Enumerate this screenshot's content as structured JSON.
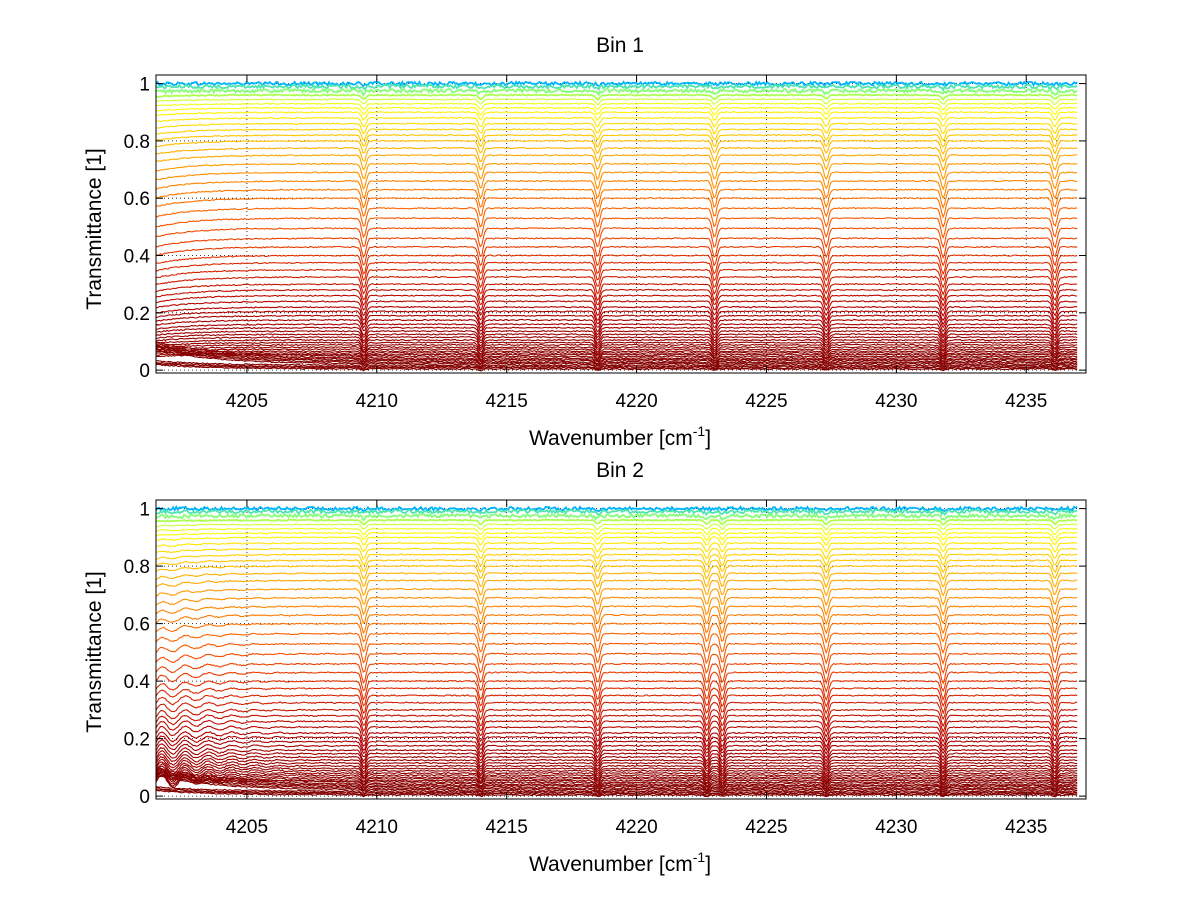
{
  "chart_data": [
    {
      "type": "line",
      "title": "Bin 1",
      "xlabel_main": "Wavenumber [cm",
      "xlabel_sup": "-1",
      "xlabel_close": "]",
      "ylabel": "Transmittance [1]",
      "xlim": [
        4201.5,
        4237.3
      ],
      "ylim": [
        -0.01,
        1.03
      ],
      "xticks": [
        4205,
        4210,
        4215,
        4220,
        4225,
        4230,
        4235
      ],
      "yticks": [
        0,
        0.2,
        0.4,
        0.6,
        0.8,
        1
      ],
      "xtick_labels": [
        "4205",
        "4210",
        "4215",
        "4220",
        "4225",
        "4230",
        "4235"
      ],
      "ytick_labels": [
        "0",
        "0.2",
        "0.4",
        "0.6",
        "0.8",
        "1"
      ],
      "grid": "dotted",
      "x_end": 4237.0,
      "absorption_lines": [
        4209.5,
        4214.0,
        4218.5,
        4223.0,
        4227.3,
        4231.8,
        4236.1
      ],
      "series_count": 60,
      "series_levels": [
        1.0,
        0.99,
        0.975,
        0.96,
        0.945,
        0.93,
        0.915,
        0.9,
        0.88,
        0.86,
        0.84,
        0.82,
        0.8,
        0.775,
        0.75,
        0.72,
        0.69,
        0.66,
        0.63,
        0.6,
        0.565,
        0.53,
        0.495,
        0.46,
        0.43,
        0.4,
        0.375,
        0.35,
        0.325,
        0.3,
        0.28,
        0.26,
        0.24,
        0.22,
        0.205,
        0.19,
        0.175,
        0.16,
        0.148,
        0.136,
        0.125,
        0.115,
        0.105,
        0.096,
        0.088,
        0.08,
        0.073,
        0.066,
        0.06,
        0.054,
        0.048,
        0.042,
        0.037,
        0.032,
        0.027,
        0.022,
        0.017,
        0.012,
        0.008,
        0.004
      ],
      "colormap": [
        "#00b4ff",
        "#7fff7f",
        "#ffff00",
        "#ffcc00",
        "#ff9900",
        "#ff6600",
        "#e63300",
        "#b30000",
        "#800000"
      ]
    },
    {
      "type": "line",
      "title": "Bin 2",
      "xlabel_main": "Wavenumber [cm",
      "xlabel_sup": "-1",
      "xlabel_close": "]",
      "ylabel": "Transmittance [1]",
      "xlim": [
        4201.5,
        4237.3
      ],
      "ylim": [
        -0.01,
        1.03
      ],
      "xticks": [
        4205,
        4210,
        4215,
        4220,
        4225,
        4230,
        4235
      ],
      "yticks": [
        0,
        0.2,
        0.4,
        0.6,
        0.8,
        1
      ],
      "xtick_labels": [
        "4205",
        "4210",
        "4215",
        "4220",
        "4225",
        "4230",
        "4235"
      ],
      "ytick_labels": [
        "0",
        "0.2",
        "0.4",
        "0.6",
        "0.8",
        "1"
      ],
      "grid": "dotted",
      "x_end": 4237.0,
      "absorption_lines": [
        4209.5,
        4214.0,
        4218.5,
        4222.7,
        4223.3,
        4227.3,
        4231.8,
        4236.1
      ],
      "series_count": 60,
      "series_levels": [
        1.0,
        0.99,
        0.975,
        0.96,
        0.945,
        0.93,
        0.915,
        0.9,
        0.88,
        0.86,
        0.84,
        0.82,
        0.8,
        0.775,
        0.75,
        0.72,
        0.69,
        0.66,
        0.63,
        0.6,
        0.565,
        0.53,
        0.495,
        0.46,
        0.43,
        0.4,
        0.375,
        0.35,
        0.325,
        0.3,
        0.28,
        0.26,
        0.24,
        0.22,
        0.205,
        0.19,
        0.175,
        0.16,
        0.148,
        0.136,
        0.125,
        0.115,
        0.105,
        0.096,
        0.088,
        0.08,
        0.073,
        0.066,
        0.06,
        0.054,
        0.048,
        0.042,
        0.037,
        0.032,
        0.027,
        0.022,
        0.017,
        0.012,
        0.008,
        0.004
      ],
      "colormap": [
        "#00b4ff",
        "#7fff7f",
        "#ffff00",
        "#ffcc00",
        "#ff9900",
        "#ff6600",
        "#e63300",
        "#b30000",
        "#800000"
      ]
    }
  ]
}
